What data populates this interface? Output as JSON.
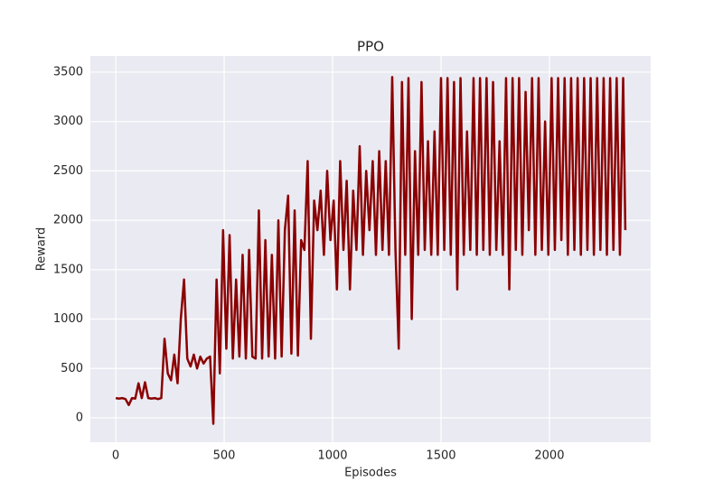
{
  "chart_data": {
    "type": "line",
    "title": "PPO",
    "x_label": "Episodes",
    "y_label": "Reward",
    "x": [
      0,
      15,
      30,
      45,
      60,
      75,
      90,
      105,
      120,
      135,
      150,
      165,
      180,
      195,
      210,
      225,
      240,
      255,
      270,
      285,
      300,
      315,
      330,
      345,
      360,
      375,
      390,
      405,
      420,
      435,
      450,
      465,
      480,
      495,
      510,
      525,
      540,
      555,
      570,
      585,
      600,
      615,
      630,
      645,
      660,
      675,
      690,
      705,
      720,
      735,
      750,
      765,
      780,
      795,
      810,
      825,
      840,
      855,
      870,
      885,
      900,
      915,
      930,
      945,
      960,
      975,
      990,
      1005,
      1020,
      1035,
      1050,
      1065,
      1080,
      1095,
      1110,
      1125,
      1140,
      1155,
      1170,
      1185,
      1200,
      1215,
      1230,
      1245,
      1260,
      1275,
      1290,
      1305,
      1320,
      1335,
      1350,
      1365,
      1380,
      1395,
      1410,
      1425,
      1440,
      1455,
      1470,
      1485,
      1500,
      1515,
      1530,
      1545,
      1560,
      1575,
      1590,
      1605,
      1620,
      1635,
      1650,
      1665,
      1680,
      1695,
      1710,
      1725,
      1740,
      1755,
      1770,
      1785,
      1800,
      1815,
      1830,
      1845,
      1860,
      1875,
      1890,
      1905,
      1920,
      1935,
      1950,
      1965,
      1980,
      1995,
      2010,
      2025,
      2040,
      2055,
      2070,
      2085,
      2100,
      2115,
      2130,
      2145,
      2160,
      2175,
      2190,
      2205,
      2220,
      2235,
      2250,
      2265,
      2280,
      2295,
      2310,
      2325,
      2340,
      2350
    ],
    "series": [
      {
        "name": "PPO",
        "color": "#8b0000",
        "values": [
          200,
          195,
          200,
          190,
          130,
          200,
          195,
          350,
          200,
          360,
          200,
          195,
          200,
          190,
          200,
          800,
          450,
          380,
          640,
          350,
          1000,
          1400,
          600,
          520,
          640,
          500,
          620,
          550,
          600,
          620,
          -60,
          1400,
          450,
          1900,
          700,
          1850,
          600,
          1400,
          620,
          1650,
          600,
          1700,
          620,
          600,
          2100,
          600,
          1800,
          620,
          1650,
          600,
          2000,
          620,
          1900,
          2250,
          650,
          2100,
          630,
          1800,
          1700,
          2600,
          800,
          2200,
          1900,
          2300,
          1650,
          2500,
          1800,
          2200,
          1300,
          2600,
          1700,
          2400,
          1300,
          2300,
          1700,
          2750,
          1650,
          2500,
          1900,
          2600,
          1650,
          2700,
          1700,
          2600,
          1650,
          3450,
          1700,
          700,
          3400,
          1650,
          3440,
          1000,
          2700,
          1650,
          3400,
          1700,
          2800,
          1650,
          2900,
          1650,
          3440,
          1700,
          3440,
          1650,
          3400,
          1300,
          3440,
          1650,
          2900,
          1700,
          3440,
          1650,
          3440,
          1700,
          3440,
          1650,
          3400,
          1700,
          2800,
          1650,
          3440,
          1300,
          3440,
          1700,
          3440,
          1650,
          3300,
          1900,
          3440,
          1650,
          3440,
          1700,
          3000,
          1650,
          3440,
          1700,
          3440,
          1800,
          3440,
          1650,
          3440,
          1700,
          3440,
          1650,
          3440,
          1700,
          3440,
          1650,
          3440,
          1700,
          3440,
          1650,
          3440,
          1700,
          3440,
          1650,
          3440,
          1900
        ]
      }
    ],
    "xlim": [
      -117,
      2467
    ],
    "ylim": [
      -247,
      3664
    ],
    "xticks": [
      0,
      500,
      1000,
      1500,
      2000
    ],
    "yticks": [
      0,
      500,
      1000,
      1500,
      2000,
      2500,
      3000,
      3500
    ],
    "grid": true
  }
}
